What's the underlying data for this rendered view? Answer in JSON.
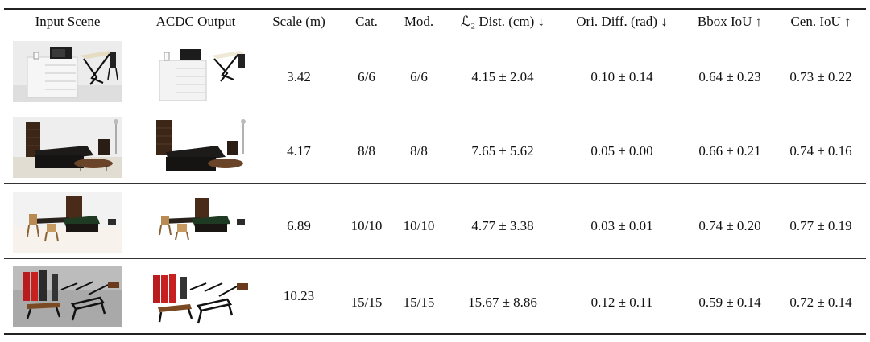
{
  "table": {
    "headers": [
      "Input Scene",
      "ACDC Output",
      "Scale (m)",
      "Cat.",
      "Mod.",
      "ℒ₂ Dist. (cm) ↓",
      "Ori. Diff. (rad) ↓",
      "Bbox IoU ↑",
      "Cen. IoU ↑"
    ],
    "rows": [
      {
        "input_scene": "living-room-dresser-microwave-desk-chair",
        "acdc_output": "living-room-dresser-microwave-desk-chair",
        "scale": "3.42",
        "cat": "6/6",
        "mod": "6/6",
        "l2": "4.15 ± 2.04",
        "ori": "0.10 ± 0.14",
        "bbox": "0.64 ± 0.23",
        "cen": "0.73 ± 0.22"
      },
      {
        "input_scene": "lounge-bookshelf-sofa-coffee-table",
        "acdc_output": "lounge-bookshelf-sofa-coffee-table",
        "scale": "4.17",
        "cat": "8/8",
        "mod": "8/8",
        "l2": "7.65 ± 5.62",
        "ori": "0.05 ± 0.00",
        "bbox": "0.66 ± 0.21",
        "cen": "0.74 ± 0.16"
      },
      {
        "input_scene": "game-room-tables-chairs-cabinet",
        "acdc_output": "game-room-tables-chairs-cabinet",
        "scale": "6.89",
        "cat": "10/10",
        "mod": "10/10",
        "l2": "4.77 ± 3.38",
        "ori": "0.03 ± 0.01",
        "bbox": "0.74 ± 0.20",
        "cen": "0.77 ± 0.19"
      },
      {
        "input_scene": "gym-lockers-benches-equipment",
        "acdc_output": "gym-lockers-benches-equipment",
        "scale": "10.23",
        "cat": "15/15",
        "mod": "15/15",
        "l2": "15.67 ± 8.86",
        "ori": "0.12 ± 0.11",
        "bbox": "0.59 ± 0.14",
        "cen": "0.72 ± 0.14"
      }
    ]
  }
}
